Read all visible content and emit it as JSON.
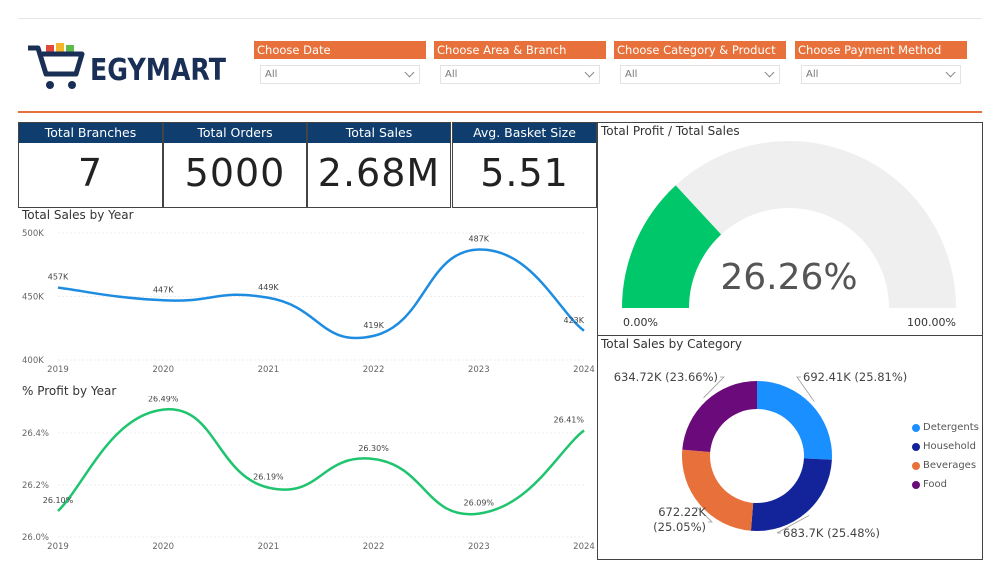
{
  "brand": {
    "name": "EGYMART",
    "colors": {
      "navy": "#1a2f55",
      "red": "#e04a3a",
      "yellow": "#f2b62a",
      "green": "#5dbb4a"
    }
  },
  "filters": [
    {
      "label": "Choose Date",
      "value": "All"
    },
    {
      "label": "Choose Area & Branch",
      "value": "All"
    },
    {
      "label": "Choose Category & Product",
      "value": "All"
    },
    {
      "label": "Choose Payment Method",
      "value": "All"
    }
  ],
  "kpis": [
    {
      "label": "Total Branches",
      "value": "7"
    },
    {
      "label": "Total Orders",
      "value": "5000"
    },
    {
      "label": "Total Sales",
      "value": "2.68M"
    },
    {
      "label": "Avg. Basket Size",
      "value": "5.51"
    }
  ],
  "colors": {
    "accent": "#e8703a",
    "header": "#0e3d6e",
    "sales_line": "#1e8ce0",
    "profit_line": "#1fc46e",
    "gauge_fill": "#00c86a",
    "gauge_bg": "#efefef"
  },
  "chart_data": [
    {
      "type": "line",
      "title": "Total Sales by Year",
      "x": [
        "2019",
        "2020",
        "2021",
        "2022",
        "2023",
        "2024"
      ],
      "values": [
        457,
        447,
        449,
        419,
        487,
        423
      ],
      "labels": [
        "457K",
        "447K",
        "449K",
        "419K",
        "487K",
        "423K"
      ],
      "yticks": [
        "400K",
        "450K",
        "500K"
      ],
      "ylim": [
        400,
        500
      ],
      "grid": true
    },
    {
      "type": "line",
      "title": "% Profit by Year",
      "x": [
        "2019",
        "2020",
        "2021",
        "2022",
        "2023",
        "2024"
      ],
      "values": [
        26.1,
        26.49,
        26.19,
        26.3,
        26.09,
        26.41
      ],
      "labels": [
        "26.10%",
        "26.49%",
        "26.19%",
        "26.30%",
        "26.09%",
        "26.41%"
      ],
      "yticks": [
        "26.0%",
        "26.2%",
        "26.4%"
      ],
      "ylim": [
        26.0,
        26.5
      ],
      "grid": true
    },
    {
      "type": "gauge",
      "title": "Total Profit / Total Sales",
      "value": 26.26,
      "value_label": "26.26%",
      "min_label": "0.00%",
      "max_label": "100.00%",
      "range": [
        0,
        100
      ]
    },
    {
      "type": "pie",
      "title": "Total Sales by Category",
      "slices": [
        {
          "name": "Detergents",
          "value": 692.41,
          "label": "692.41K (25.81%)",
          "color": "#1a8fff"
        },
        {
          "name": "Household",
          "value": 683.7,
          "label": "683.7K (25.48%)",
          "color": "#13249a"
        },
        {
          "name": "Beverages",
          "value": 672.22,
          "label": "672.22K (25.05%)",
          "color": "#e8703a"
        },
        {
          "name": "Food",
          "value": 634.72,
          "label": "634.72K (23.66%)",
          "color": "#6b0a7a"
        }
      ],
      "legend": "right"
    }
  ]
}
